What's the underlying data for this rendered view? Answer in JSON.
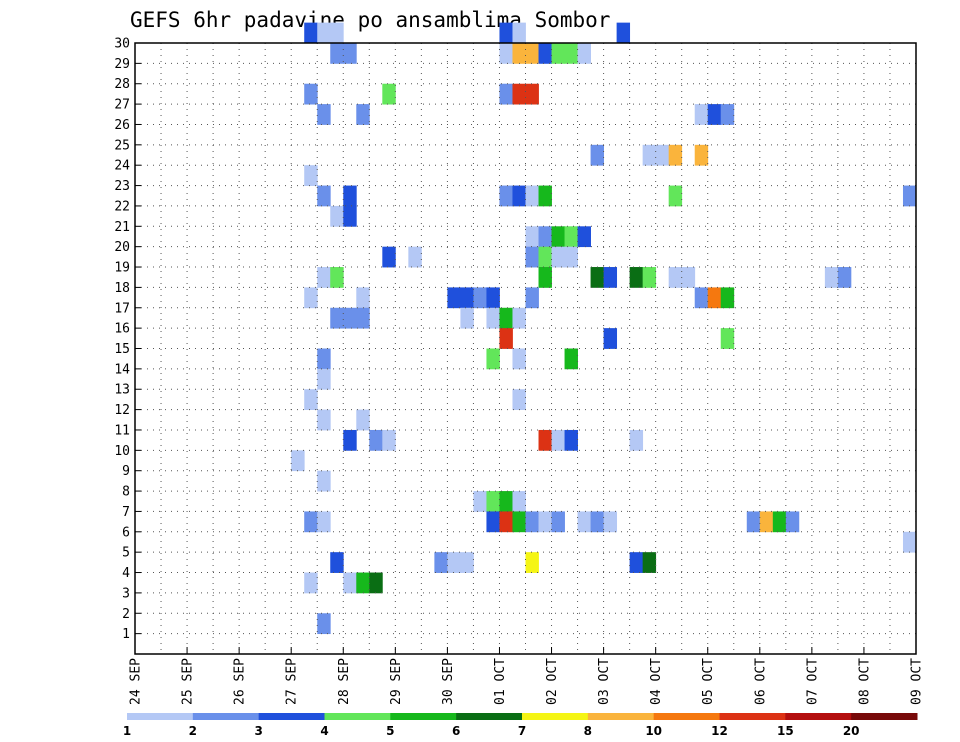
{
  "chart_data": {
    "type": "heatmap",
    "title": "GEFS 6hr padavine po ansamblima Sombor",
    "x_tick_labels": [
      "24 SEP",
      "25 SEP",
      "26 SEP",
      "27 SEP",
      "28 SEP",
      "29 SEP",
      "30 SEP",
      "01 OCT",
      "02 OCT",
      "03 OCT",
      "04 OCT",
      "05 OCT",
      "06 OCT",
      "07 OCT",
      "08 OCT",
      "09 OCT"
    ],
    "y_tick_labels": [
      "1",
      "2",
      "3",
      "4",
      "5",
      "6",
      "7",
      "8",
      "9",
      "10",
      "11",
      "12",
      "13",
      "14",
      "15",
      "16",
      "17",
      "18",
      "19",
      "20",
      "21",
      "22",
      "23",
      "24",
      "25",
      "26",
      "27",
      "28",
      "29",
      "30"
    ],
    "xlim_days": [
      0,
      15
    ],
    "ylim_members": [
      0,
      30
    ],
    "grid": true,
    "colorbar": {
      "bins": [
        {
          "color": "#b4c8f5"
        },
        {
          "color": "#6a90ea"
        },
        {
          "color": "#1f50dc"
        },
        {
          "color": "#62e65a"
        },
        {
          "color": "#16b81c"
        },
        {
          "color": "#0a6e14"
        },
        {
          "color": "#f5f514"
        },
        {
          "color": "#fab43c"
        },
        {
          "color": "#f5780f"
        },
        {
          "color": "#dc3214"
        },
        {
          "color": "#b40f0f"
        },
        {
          "color": "#780a0a"
        }
      ],
      "tick_labels": [
        "1",
        "2",
        "3",
        "4",
        "5",
        "6",
        "7",
        "8",
        "10",
        "12",
        "15",
        "20"
      ]
    },
    "cells": [
      [
        3.25,
        30,
        2
      ],
      [
        3.5,
        30,
        0
      ],
      [
        3.75,
        30,
        0
      ],
      [
        7.0,
        30,
        2
      ],
      [
        7.25,
        30,
        0
      ],
      [
        9.25,
        30,
        2
      ],
      [
        3.75,
        29,
        1
      ],
      [
        4.0,
        29,
        1
      ],
      [
        7.0,
        29,
        0
      ],
      [
        7.25,
        29,
        7
      ],
      [
        7.5,
        29,
        7
      ],
      [
        7.75,
        29,
        2
      ],
      [
        8.0,
        29,
        3
      ],
      [
        8.25,
        29,
        3
      ],
      [
        8.5,
        29,
        0
      ],
      [
        3.25,
        27,
        1
      ],
      [
        4.75,
        27,
        3
      ],
      [
        7.0,
        27,
        1
      ],
      [
        7.25,
        27,
        9
      ],
      [
        7.5,
        27,
        9
      ],
      [
        3.5,
        26,
        1
      ],
      [
        4.25,
        26,
        1
      ],
      [
        10.75,
        26,
        0
      ],
      [
        11.0,
        26,
        2
      ],
      [
        11.25,
        26,
        1
      ],
      [
        8.75,
        24,
        1
      ],
      [
        9.75,
        24,
        0
      ],
      [
        10.0,
        24,
        0
      ],
      [
        10.25,
        24,
        7
      ],
      [
        10.75,
        24,
        7
      ],
      [
        3.25,
        23,
        0
      ],
      [
        3.5,
        22,
        1
      ],
      [
        4.0,
        22,
        2
      ],
      [
        7.0,
        22,
        1
      ],
      [
        7.25,
        22,
        2
      ],
      [
        7.5,
        22,
        0
      ],
      [
        7.75,
        22,
        4
      ],
      [
        10.25,
        22,
        3
      ],
      [
        14.75,
        22,
        1
      ],
      [
        3.75,
        21,
        0
      ],
      [
        4.0,
        21,
        2
      ],
      [
        7.5,
        20,
        0
      ],
      [
        7.75,
        20,
        1
      ],
      [
        8.0,
        20,
        4
      ],
      [
        8.25,
        20,
        3
      ],
      [
        8.5,
        20,
        2
      ],
      [
        4.75,
        19,
        2
      ],
      [
        5.25,
        19,
        0
      ],
      [
        7.5,
        19,
        1
      ],
      [
        7.75,
        19,
        3
      ],
      [
        8.0,
        19,
        0
      ],
      [
        8.25,
        19,
        0
      ],
      [
        3.5,
        18,
        0
      ],
      [
        3.75,
        18,
        3
      ],
      [
        7.75,
        18,
        4
      ],
      [
        8.75,
        18,
        5
      ],
      [
        9.0,
        18,
        2
      ],
      [
        9.5,
        18,
        5
      ],
      [
        9.75,
        18,
        3
      ],
      [
        10.25,
        18,
        0
      ],
      [
        10.5,
        18,
        0
      ],
      [
        13.25,
        18,
        0
      ],
      [
        13.5,
        18,
        1
      ],
      [
        3.25,
        17,
        0
      ],
      [
        4.25,
        17,
        0
      ],
      [
        6.0,
        17,
        2
      ],
      [
        6.25,
        17,
        2
      ],
      [
        6.5,
        17,
        1
      ],
      [
        6.75,
        17,
        2
      ],
      [
        7.5,
        17,
        1
      ],
      [
        10.75,
        17,
        1
      ],
      [
        11.0,
        17,
        8
      ],
      [
        11.25,
        17,
        4
      ],
      [
        3.75,
        16,
        1
      ],
      [
        4.0,
        16,
        1
      ],
      [
        4.25,
        16,
        1
      ],
      [
        6.25,
        16,
        0
      ],
      [
        6.75,
        16,
        0
      ],
      [
        7.0,
        16,
        4
      ],
      [
        7.25,
        16,
        0
      ],
      [
        7.0,
        15,
        9
      ],
      [
        9.0,
        15,
        2
      ],
      [
        11.25,
        15,
        3
      ],
      [
        3.5,
        14,
        1
      ],
      [
        6.75,
        14,
        3
      ],
      [
        7.25,
        14,
        0
      ],
      [
        8.25,
        14,
        4
      ],
      [
        3.5,
        13,
        0
      ],
      [
        3.25,
        12,
        0
      ],
      [
        7.25,
        12,
        0
      ],
      [
        3.5,
        11,
        0
      ],
      [
        4.25,
        11,
        0
      ],
      [
        4.0,
        10,
        2
      ],
      [
        4.5,
        10,
        1
      ],
      [
        4.75,
        10,
        0
      ],
      [
        7.75,
        10,
        9
      ],
      [
        8.0,
        10,
        0
      ],
      [
        8.25,
        10,
        2
      ],
      [
        9.5,
        10,
        0
      ],
      [
        3.0,
        9,
        0
      ],
      [
        3.5,
        8,
        0
      ],
      [
        6.5,
        7,
        0
      ],
      [
        6.75,
        7,
        3
      ],
      [
        7.0,
        7,
        4
      ],
      [
        7.25,
        7,
        0
      ],
      [
        3.25,
        6,
        1
      ],
      [
        3.5,
        6,
        0
      ],
      [
        6.75,
        6,
        2
      ],
      [
        7.0,
        6,
        9
      ],
      [
        7.25,
        6,
        4
      ],
      [
        7.5,
        6,
        1
      ],
      [
        7.75,
        6,
        0
      ],
      [
        8.0,
        6,
        1
      ],
      [
        8.5,
        6,
        0
      ],
      [
        8.75,
        6,
        1
      ],
      [
        9.0,
        6,
        0
      ],
      [
        11.75,
        6,
        1
      ],
      [
        12.0,
        6,
        7
      ],
      [
        12.25,
        6,
        4
      ],
      [
        12.5,
        6,
        1
      ],
      [
        14.75,
        5,
        0
      ],
      [
        3.75,
        4,
        2
      ],
      [
        5.75,
        4,
        1
      ],
      [
        6.0,
        4,
        0
      ],
      [
        6.25,
        4,
        0
      ],
      [
        7.5,
        4,
        6
      ],
      [
        9.5,
        4,
        2
      ],
      [
        9.75,
        4,
        5
      ],
      [
        3.25,
        3,
        0
      ],
      [
        4.0,
        3,
        0
      ],
      [
        4.25,
        3,
        4
      ],
      [
        4.5,
        3,
        5
      ],
      [
        3.5,
        1,
        1
      ]
    ]
  }
}
